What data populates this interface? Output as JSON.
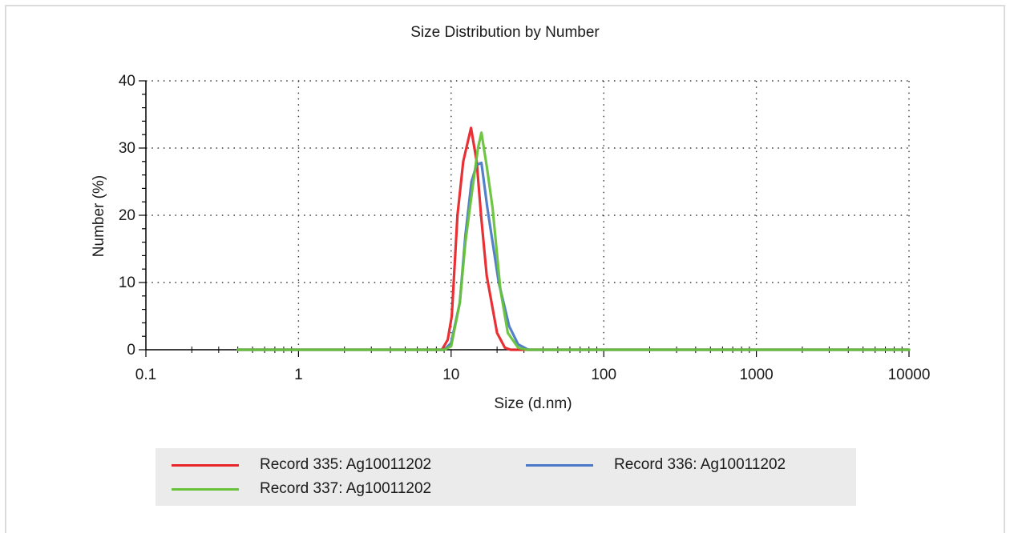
{
  "chart_data": {
    "type": "line",
    "title": "Size Distribution by Number",
    "xlabel": "Size (d.nm)",
    "ylabel": "Number (%)",
    "xscale": "log",
    "xlim": [
      0.1,
      10000
    ],
    "ylim": [
      0,
      40
    ],
    "xticks": [
      0.1,
      1,
      10,
      100,
      1000,
      10000
    ],
    "xtick_labels": [
      "0.1",
      "1",
      "10",
      "100",
      "1000",
      "10000"
    ],
    "yticks": [
      0,
      10,
      20,
      30,
      40
    ],
    "ytick_labels": [
      "0",
      "10",
      "20",
      "30",
      "40"
    ],
    "grid": true,
    "legend_position": "bottom",
    "series": [
      {
        "name": "Record 335: Ag10011202",
        "color": "#e8262a",
        "points": [
          [
            0.4,
            0
          ],
          [
            8.7,
            0
          ],
          [
            9.5,
            1.5
          ],
          [
            10.1,
            5
          ],
          [
            11.0,
            20
          ],
          [
            12.0,
            28
          ],
          [
            13.5,
            33
          ],
          [
            14.7,
            28
          ],
          [
            15.7,
            20
          ],
          [
            17.1,
            11
          ],
          [
            20.0,
            2.5
          ],
          [
            22.5,
            0.3
          ],
          [
            24.5,
            0
          ],
          [
            10000,
            0
          ]
        ]
      },
      {
        "name": "Record 336: Ag10011202",
        "color": "#4b79c7",
        "points": [
          [
            0.4,
            0
          ],
          [
            9.0,
            0
          ],
          [
            10.0,
            1
          ],
          [
            11.4,
            7
          ],
          [
            12.4,
            17
          ],
          [
            13.6,
            25
          ],
          [
            14.7,
            27.5
          ],
          [
            15.8,
            27.8
          ],
          [
            17.3,
            21
          ],
          [
            20.5,
            10
          ],
          [
            24.0,
            3.5
          ],
          [
            27.5,
            0.8
          ],
          [
            32,
            0
          ],
          [
            10000,
            0
          ]
        ]
      },
      {
        "name": "Record 337: Ag10011202",
        "color": "#67c23a",
        "points": [
          [
            0.4,
            0
          ],
          [
            9.0,
            0
          ],
          [
            10.0,
            0.5
          ],
          [
            11.4,
            7
          ],
          [
            12.4,
            16
          ],
          [
            13.8,
            24
          ],
          [
            15.0,
            30
          ],
          [
            15.8,
            32.3
          ],
          [
            17.2,
            27
          ],
          [
            18.7,
            21
          ],
          [
            21.0,
            9
          ],
          [
            23.5,
            2.5
          ],
          [
            27.5,
            0.3
          ],
          [
            31,
            0
          ],
          [
            10000,
            0
          ]
        ]
      }
    ]
  }
}
